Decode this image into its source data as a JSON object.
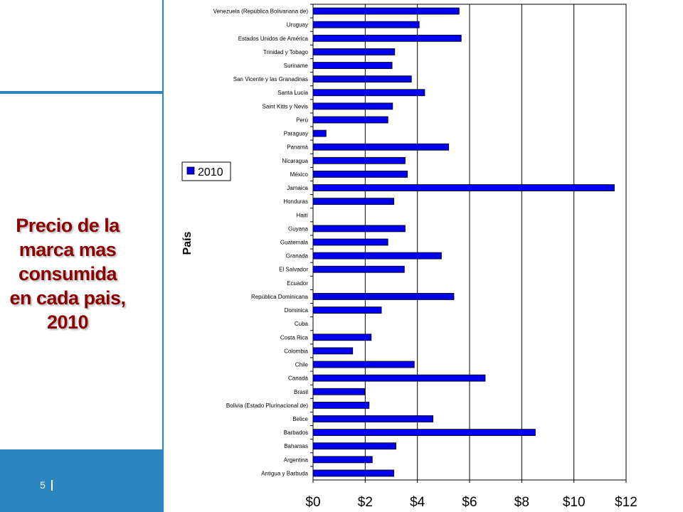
{
  "slide": {
    "title": "Precio de la\nmarca mas\nconsumida\nen cada pais,\n2010",
    "page_number": "5"
  },
  "colors": {
    "accent": "#2e86c1",
    "title": "#8b0000",
    "bar": "#0000ee"
  },
  "chart_data": {
    "type": "bar",
    "orientation": "horizontal",
    "title": "",
    "ylabel": "País",
    "xlabel": "",
    "xlim": [
      0,
      12
    ],
    "xticks": [
      "$0",
      "$2",
      "$4",
      "$6",
      "$8",
      "$10",
      "$12"
    ],
    "grid": "vertical",
    "legend_position": "left",
    "categories": [
      "Venezuela (República Bolivariana de)",
      "Uruguay",
      "Estados Unidos de América",
      "Trinidad y Tobago",
      "Suriname",
      "San Vicente y las Granadinas",
      "Santa Lucía",
      "Saint Kitts y Nevis",
      "Perú",
      "Paraguay",
      "Panamá",
      "Nicaragua",
      "México",
      "Jamaica",
      "Honduras",
      "Haití",
      "Guyana",
      "Guatemala",
      "Granada",
      "El Salvador",
      "Ecuador",
      "República Dominicana",
      "Dominica",
      "Cuba",
      "Costa Rica",
      "Colombia",
      "Chile",
      "Canadá",
      "Brasil",
      "Bolivia (Estado Plurinacional de)",
      "Belice",
      "Barbados",
      "Bahamas",
      "Argentina",
      "Antigua y Barbuda"
    ],
    "series": [
      {
        "name": "2010",
        "values": [
          5.6,
          4.07,
          5.68,
          3.13,
          3.03,
          3.77,
          4.28,
          3.05,
          2.87,
          0.5,
          5.2,
          3.53,
          3.62,
          11.55,
          3.1,
          null,
          3.53,
          2.87,
          4.92,
          3.5,
          null,
          5.4,
          2.62,
          null,
          2.23,
          1.52,
          3.88,
          6.6,
          1.98,
          2.15,
          4.6,
          8.52,
          3.18,
          2.27,
          3.1
        ]
      }
    ]
  }
}
